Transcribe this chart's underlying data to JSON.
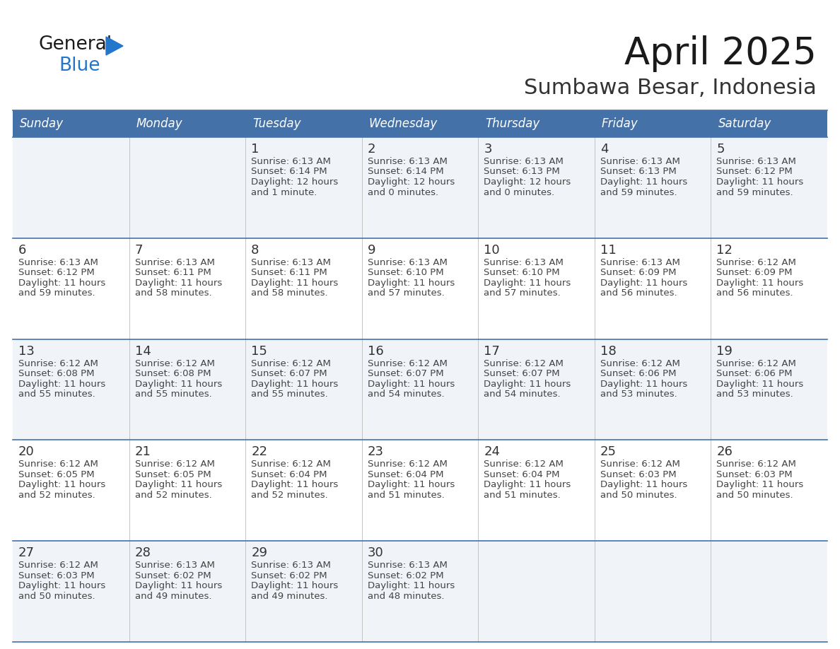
{
  "title": "April 2025",
  "subtitle": "Sumbawa Besar, Indonesia",
  "header_bg": "#4472a8",
  "header_text": "#ffffff",
  "row_bg_light": "#f0f4f8",
  "row_bg_white": "#ffffff",
  "cell_text": "#333333",
  "day_number_color": "#333333",
  "grid_line_color": "#4472a8",
  "days_of_week": [
    "Sunday",
    "Monday",
    "Tuesday",
    "Wednesday",
    "Thursday",
    "Friday",
    "Saturday"
  ],
  "calendar_data": [
    [
      {
        "day": "",
        "sunrise": "",
        "sunset": "",
        "daylight": ""
      },
      {
        "day": "",
        "sunrise": "",
        "sunset": "",
        "daylight": ""
      },
      {
        "day": "1",
        "sunrise": "6:13 AM",
        "sunset": "6:14 PM",
        "daylight": "12 hours and 1 minute."
      },
      {
        "day": "2",
        "sunrise": "6:13 AM",
        "sunset": "6:14 PM",
        "daylight": "12 hours and 0 minutes."
      },
      {
        "day": "3",
        "sunrise": "6:13 AM",
        "sunset": "6:13 PM",
        "daylight": "12 hours and 0 minutes."
      },
      {
        "day": "4",
        "sunrise": "6:13 AM",
        "sunset": "6:13 PM",
        "daylight": "11 hours and 59 minutes."
      },
      {
        "day": "5",
        "sunrise": "6:13 AM",
        "sunset": "6:12 PM",
        "daylight": "11 hours and 59 minutes."
      }
    ],
    [
      {
        "day": "6",
        "sunrise": "6:13 AM",
        "sunset": "6:12 PM",
        "daylight": "11 hours and 59 minutes."
      },
      {
        "day": "7",
        "sunrise": "6:13 AM",
        "sunset": "6:11 PM",
        "daylight": "11 hours and 58 minutes."
      },
      {
        "day": "8",
        "sunrise": "6:13 AM",
        "sunset": "6:11 PM",
        "daylight": "11 hours and 58 minutes."
      },
      {
        "day": "9",
        "sunrise": "6:13 AM",
        "sunset": "6:10 PM",
        "daylight": "11 hours and 57 minutes."
      },
      {
        "day": "10",
        "sunrise": "6:13 AM",
        "sunset": "6:10 PM",
        "daylight": "11 hours and 57 minutes."
      },
      {
        "day": "11",
        "sunrise": "6:13 AM",
        "sunset": "6:09 PM",
        "daylight": "11 hours and 56 minutes."
      },
      {
        "day": "12",
        "sunrise": "6:12 AM",
        "sunset": "6:09 PM",
        "daylight": "11 hours and 56 minutes."
      }
    ],
    [
      {
        "day": "13",
        "sunrise": "6:12 AM",
        "sunset": "6:08 PM",
        "daylight": "11 hours and 55 minutes."
      },
      {
        "day": "14",
        "sunrise": "6:12 AM",
        "sunset": "6:08 PM",
        "daylight": "11 hours and 55 minutes."
      },
      {
        "day": "15",
        "sunrise": "6:12 AM",
        "sunset": "6:07 PM",
        "daylight": "11 hours and 55 minutes."
      },
      {
        "day": "16",
        "sunrise": "6:12 AM",
        "sunset": "6:07 PM",
        "daylight": "11 hours and 54 minutes."
      },
      {
        "day": "17",
        "sunrise": "6:12 AM",
        "sunset": "6:07 PM",
        "daylight": "11 hours and 54 minutes."
      },
      {
        "day": "18",
        "sunrise": "6:12 AM",
        "sunset": "6:06 PM",
        "daylight": "11 hours and 53 minutes."
      },
      {
        "day": "19",
        "sunrise": "6:12 AM",
        "sunset": "6:06 PM",
        "daylight": "11 hours and 53 minutes."
      }
    ],
    [
      {
        "day": "20",
        "sunrise": "6:12 AM",
        "sunset": "6:05 PM",
        "daylight": "11 hours and 52 minutes."
      },
      {
        "day": "21",
        "sunrise": "6:12 AM",
        "sunset": "6:05 PM",
        "daylight": "11 hours and 52 minutes."
      },
      {
        "day": "22",
        "sunrise": "6:12 AM",
        "sunset": "6:04 PM",
        "daylight": "11 hours and 52 minutes."
      },
      {
        "day": "23",
        "sunrise": "6:12 AM",
        "sunset": "6:04 PM",
        "daylight": "11 hours and 51 minutes."
      },
      {
        "day": "24",
        "sunrise": "6:12 AM",
        "sunset": "6:04 PM",
        "daylight": "11 hours and 51 minutes."
      },
      {
        "day": "25",
        "sunrise": "6:12 AM",
        "sunset": "6:03 PM",
        "daylight": "11 hours and 50 minutes."
      },
      {
        "day": "26",
        "sunrise": "6:12 AM",
        "sunset": "6:03 PM",
        "daylight": "11 hours and 50 minutes."
      }
    ],
    [
      {
        "day": "27",
        "sunrise": "6:12 AM",
        "sunset": "6:03 PM",
        "daylight": "11 hours and 50 minutes."
      },
      {
        "day": "28",
        "sunrise": "6:13 AM",
        "sunset": "6:02 PM",
        "daylight": "11 hours and 49 minutes."
      },
      {
        "day": "29",
        "sunrise": "6:13 AM",
        "sunset": "6:02 PM",
        "daylight": "11 hours and 49 minutes."
      },
      {
        "day": "30",
        "sunrise": "6:13 AM",
        "sunset": "6:02 PM",
        "daylight": "11 hours and 48 minutes."
      },
      {
        "day": "",
        "sunrise": "",
        "sunset": "",
        "daylight": ""
      },
      {
        "day": "",
        "sunrise": "",
        "sunset": "",
        "daylight": ""
      },
      {
        "day": "",
        "sunrise": "",
        "sunset": "",
        "daylight": ""
      }
    ]
  ],
  "logo_text1": "General",
  "logo_text2": "Blue",
  "logo_text1_color": "#1a1a1a",
  "logo_text2_color": "#2277cc",
  "logo_triangle_color": "#2277cc",
  "title_fontsize": 38,
  "subtitle_fontsize": 22,
  "header_fontsize": 12,
  "day_num_fontsize": 13,
  "cell_fontsize": 9.5
}
